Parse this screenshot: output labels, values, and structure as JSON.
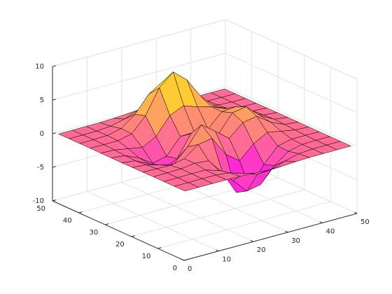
{
  "chart_data": {
    "type": "surface",
    "x": [
      1,
      5,
      9,
      13,
      17,
      21,
      25,
      29,
      33,
      37,
      41,
      45,
      49
    ],
    "y": [
      1,
      5,
      9,
      13,
      17,
      21,
      25,
      29,
      33,
      37,
      41,
      45,
      49
    ],
    "z": [
      [
        0,
        0,
        0,
        0,
        -0.03,
        -0.14,
        -0.24,
        -0.22,
        -0.11,
        -0.03,
        -0.01,
        0,
        0
      ],
      [
        0,
        0,
        0.01,
        0,
        -0.23,
        -0.91,
        -1.57,
        -1.41,
        -0.69,
        -0.18,
        -0.03,
        0,
        0
      ],
      [
        0,
        0.01,
        0.05,
        0.05,
        -0.59,
        -2.64,
        -4.76,
        -4.35,
        -2.1,
        -0.53,
        -0.06,
        0,
        0
      ],
      [
        0,
        0.01,
        0.08,
        0.33,
        0.15,
        -2.19,
        -5.68,
        -5.76,
        -2.63,
        -0.44,
        0.04,
        0.03,
        0
      ],
      [
        -0.01,
        -0.06,
        -0.13,
        0.3,
        1.86,
        2.22,
        -0.72,
        -2.22,
        -0.27,
        0.88,
        0.5,
        0.11,
        0.01
      ],
      [
        -0.03,
        -0.2,
        -0.8,
        -1.21,
        0.8,
        3.55,
        2.0,
        0.39,
        2.2,
        2.56,
        1.12,
        0.24,
        0.03
      ],
      [
        -0.04,
        -0.3,
        -1.33,
        -2.77,
        -1.65,
        1.48,
        0.98,
        0.37,
        2.94,
        3.27,
        1.41,
        0.3,
        0.03
      ],
      [
        -0.03,
        -0.25,
        -1.12,
        -2.49,
        -2.0,
        0.39,
        0.46,
        0.38,
        2.38,
        2.56,
        1.09,
        0.23,
        0.03
      ],
      [
        -0.01,
        -0.11,
        -0.48,
        -0.86,
        0.23,
        2.79,
        3.69,
        2.94,
        2.43,
        1.58,
        0.58,
        0.11,
        0.01
      ],
      [
        0,
        -0.02,
        -0.01,
        0.48,
        2.61,
        6.2,
        8.0,
        6.25,
        3.25,
        1.19,
        0.29,
        0.05,
        0
      ],
      [
        0,
        0.01,
        0.08,
        0.55,
        2.1,
        4.56,
        5.86,
        4.57,
        2.21,
        0.68,
        0.13,
        0.02,
        0
      ],
      [
        0,
        0,
        0.03,
        0.19,
        0.69,
        1.47,
        1.88,
        1.47,
        0.7,
        0.2,
        0.04,
        0,
        0
      ],
      [
        0,
        0,
        0.01,
        0.03,
        0.11,
        0.23,
        0.3,
        0.23,
        0.11,
        0.03,
        0.01,
        0,
        0
      ]
    ],
    "xlim": [
      0,
      50
    ],
    "ylim": [
      0,
      50
    ],
    "zlim": [
      -10,
      10
    ],
    "xticks": [
      0,
      10,
      20,
      30,
      40,
      50
    ],
    "yticks": [
      0,
      10,
      20,
      30,
      40,
      50
    ],
    "zticks": [
      -10,
      -5,
      0,
      5,
      10
    ],
    "colormap": [
      "#ff00ff",
      "#ffff00"
    ],
    "edgecolor": "#000000",
    "grid": true
  }
}
